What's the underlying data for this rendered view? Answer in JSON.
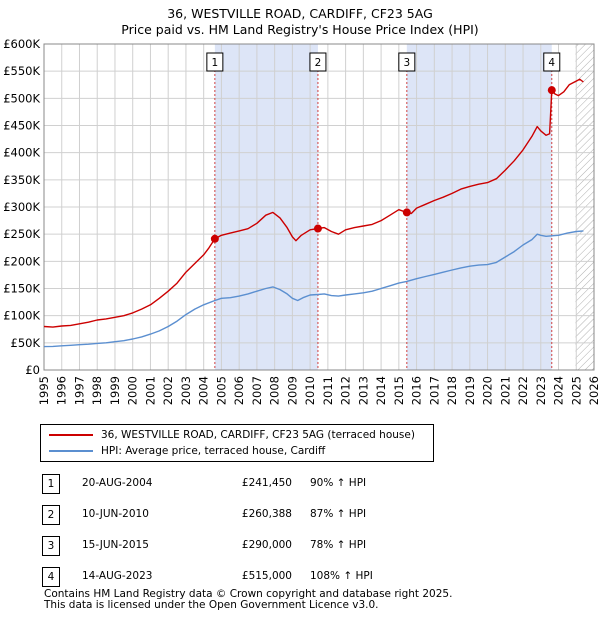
{
  "title_line1": "36, WESTVILLE ROAD, CARDIFF, CF23 5AG",
  "title_line2": "Price paid vs. HM Land Registry's House Price Index (HPI)",
  "colors": {
    "property": "#cc0000",
    "hpi": "#5b8fd0",
    "shade": "#dde5f7",
    "grid": "#d0d0d0"
  },
  "legend": {
    "property_label": "36, WESTVILLE ROAD, CARDIFF, CF23 5AG (terraced house)",
    "hpi_label": "HPI: Average price, terraced house, Cardiff"
  },
  "sales": [
    {
      "num": "1",
      "date": "20-AUG-2004",
      "price": "£241,450",
      "hpi": "90% ↑ HPI"
    },
    {
      "num": "2",
      "date": "10-JUN-2010",
      "price": "£260,388",
      "hpi": "87% ↑ HPI"
    },
    {
      "num": "3",
      "date": "15-JUN-2015",
      "price": "£290,000",
      "hpi": "78% ↑ HPI"
    },
    {
      "num": "4",
      "date": "14-AUG-2023",
      "price": "£515,000",
      "hpi": "108% ↑ HPI"
    }
  ],
  "footer": {
    "line1": "Contains HM Land Registry data © Crown copyright and database right 2025.",
    "line2": "This data is licensed under the Open Government Licence v3.0."
  },
  "chart_data": {
    "type": "line",
    "x_range": [
      1995,
      2026
    ],
    "y_range": [
      0,
      600000
    ],
    "y_ticks": [
      0,
      50000,
      100000,
      150000,
      200000,
      250000,
      300000,
      350000,
      400000,
      450000,
      500000,
      550000,
      600000
    ],
    "y_tick_labels": [
      "£0",
      "£50K",
      "£100K",
      "£150K",
      "£200K",
      "£250K",
      "£300K",
      "£350K",
      "£400K",
      "£450K",
      "£500K",
      "£550K",
      "£600K"
    ],
    "x_ticks": [
      1995,
      1996,
      1997,
      1998,
      1999,
      2000,
      2001,
      2002,
      2003,
      2004,
      2005,
      2006,
      2007,
      2008,
      2009,
      2010,
      2011,
      2012,
      2013,
      2014,
      2015,
      2016,
      2017,
      2018,
      2019,
      2020,
      2021,
      2022,
      2023,
      2024,
      2025,
      2026
    ],
    "x_tick_labels": [
      "1995",
      "1996",
      "1997",
      "1998",
      "1999",
      "2000",
      "2001",
      "2002",
      "2003",
      "2004",
      "2005",
      "2006",
      "2007",
      "2008",
      "2009",
      "2010",
      "2011",
      "2012",
      "2013",
      "2014",
      "2015",
      "2016",
      "2017",
      "2018",
      "2019",
      "2020",
      "2021",
      "2022",
      "2023",
      "2024",
      "2025",
      "2026"
    ],
    "shaded_periods": [
      [
        2004.63,
        2010.44
      ],
      [
        2015.45,
        2023.62
      ]
    ],
    "future_hatch_from": 2024.95,
    "sale_markers": [
      {
        "label": "1",
        "x": 2004.63,
        "y": 241450
      },
      {
        "label": "2",
        "x": 2010.44,
        "y": 260388
      },
      {
        "label": "3",
        "x": 2015.45,
        "y": 290000
      },
      {
        "label": "4",
        "x": 2023.62,
        "y": 515000
      }
    ],
    "series": [
      {
        "name": "36, WESTVILLE ROAD, CARDIFF, CF23 5AG (terraced house)",
        "points": [
          [
            1995.0,
            80000
          ],
          [
            1995.5,
            79000
          ],
          [
            1996.0,
            81000
          ],
          [
            1996.5,
            82000
          ],
          [
            1997.0,
            85000
          ],
          [
            1997.5,
            88000
          ],
          [
            1998.0,
            92000
          ],
          [
            1998.5,
            94000
          ],
          [
            1999.0,
            97000
          ],
          [
            1999.5,
            100000
          ],
          [
            2000.0,
            105000
          ],
          [
            2000.5,
            112000
          ],
          [
            2001.0,
            120000
          ],
          [
            2001.5,
            132000
          ],
          [
            2002.0,
            145000
          ],
          [
            2002.5,
            160000
          ],
          [
            2003.0,
            180000
          ],
          [
            2003.5,
            196000
          ],
          [
            2004.0,
            212000
          ],
          [
            2004.3,
            225000
          ],
          [
            2004.63,
            241450
          ],
          [
            2005.0,
            248000
          ],
          [
            2005.5,
            252000
          ],
          [
            2006.0,
            256000
          ],
          [
            2006.5,
            260000
          ],
          [
            2007.0,
            270000
          ],
          [
            2007.5,
            285000
          ],
          [
            2007.9,
            290000
          ],
          [
            2008.3,
            280000
          ],
          [
            2008.7,
            262000
          ],
          [
            2009.0,
            245000
          ],
          [
            2009.2,
            238000
          ],
          [
            2009.5,
            248000
          ],
          [
            2010.0,
            258000
          ],
          [
            2010.44,
            260388
          ],
          [
            2010.8,
            262000
          ],
          [
            2011.2,
            255000
          ],
          [
            2011.6,
            250000
          ],
          [
            2012.0,
            258000
          ],
          [
            2012.5,
            262000
          ],
          [
            2013.0,
            265000
          ],
          [
            2013.5,
            268000
          ],
          [
            2014.0,
            275000
          ],
          [
            2014.5,
            285000
          ],
          [
            2015.0,
            295000
          ],
          [
            2015.45,
            290000
          ],
          [
            2015.7,
            288000
          ],
          [
            2016.0,
            298000
          ],
          [
            2016.5,
            305000
          ],
          [
            2017.0,
            312000
          ],
          [
            2017.5,
            318000
          ],
          [
            2018.0,
            325000
          ],
          [
            2018.5,
            333000
          ],
          [
            2019.0,
            338000
          ],
          [
            2019.5,
            342000
          ],
          [
            2020.0,
            345000
          ],
          [
            2020.5,
            352000
          ],
          [
            2021.0,
            368000
          ],
          [
            2021.5,
            385000
          ],
          [
            2022.0,
            405000
          ],
          [
            2022.5,
            430000
          ],
          [
            2022.8,
            448000
          ],
          [
            2023.0,
            440000
          ],
          [
            2023.3,
            432000
          ],
          [
            2023.5,
            435000
          ],
          [
            2023.62,
            515000
          ],
          [
            2023.8,
            508000
          ],
          [
            2024.0,
            505000
          ],
          [
            2024.3,
            512000
          ],
          [
            2024.6,
            525000
          ],
          [
            2024.9,
            530000
          ],
          [
            2025.2,
            535000
          ],
          [
            2025.4,
            530000
          ]
        ]
      },
      {
        "name": "HPI: Average price, terraced house, Cardiff",
        "points": [
          [
            1995.0,
            43000
          ],
          [
            1995.5,
            43500
          ],
          [
            1996.0,
            44500
          ],
          [
            1996.5,
            45500
          ],
          [
            1997.0,
            46500
          ],
          [
            1997.5,
            47500
          ],
          [
            1998.0,
            49000
          ],
          [
            1998.5,
            50000
          ],
          [
            1999.0,
            52000
          ],
          [
            1999.5,
            54000
          ],
          [
            2000.0,
            57000
          ],
          [
            2000.5,
            61000
          ],
          [
            2001.0,
            66000
          ],
          [
            2001.5,
            72000
          ],
          [
            2002.0,
            80000
          ],
          [
            2002.5,
            90000
          ],
          [
            2003.0,
            102000
          ],
          [
            2003.5,
            112000
          ],
          [
            2004.0,
            120000
          ],
          [
            2004.63,
            128000
          ],
          [
            2005.0,
            132000
          ],
          [
            2005.5,
            133000
          ],
          [
            2006.0,
            136000
          ],
          [
            2006.5,
            140000
          ],
          [
            2007.0,
            145000
          ],
          [
            2007.5,
            150000
          ],
          [
            2007.9,
            153000
          ],
          [
            2008.3,
            148000
          ],
          [
            2008.7,
            140000
          ],
          [
            2009.0,
            132000
          ],
          [
            2009.3,
            128000
          ],
          [
            2009.6,
            133000
          ],
          [
            2010.0,
            138000
          ],
          [
            2010.44,
            139000
          ],
          [
            2010.8,
            140000
          ],
          [
            2011.2,
            137000
          ],
          [
            2011.6,
            136000
          ],
          [
            2012.0,
            138000
          ],
          [
            2012.5,
            140000
          ],
          [
            2013.0,
            142000
          ],
          [
            2013.5,
            145000
          ],
          [
            2014.0,
            150000
          ],
          [
            2014.5,
            155000
          ],
          [
            2015.0,
            160000
          ],
          [
            2015.45,
            163000
          ],
          [
            2016.0,
            168000
          ],
          [
            2016.5,
            172000
          ],
          [
            2017.0,
            176000
          ],
          [
            2017.5,
            180000
          ],
          [
            2018.0,
            184000
          ],
          [
            2018.5,
            188000
          ],
          [
            2019.0,
            191000
          ],
          [
            2019.5,
            193000
          ],
          [
            2020.0,
            194000
          ],
          [
            2020.5,
            198000
          ],
          [
            2021.0,
            208000
          ],
          [
            2021.5,
            218000
          ],
          [
            2022.0,
            230000
          ],
          [
            2022.5,
            240000
          ],
          [
            2022.8,
            250000
          ],
          [
            2023.0,
            248000
          ],
          [
            2023.3,
            246000
          ],
          [
            2023.62,
            247000
          ],
          [
            2024.0,
            248000
          ],
          [
            2024.5,
            252000
          ],
          [
            2025.0,
            255000
          ],
          [
            2025.4,
            256000
          ]
        ]
      }
    ]
  }
}
